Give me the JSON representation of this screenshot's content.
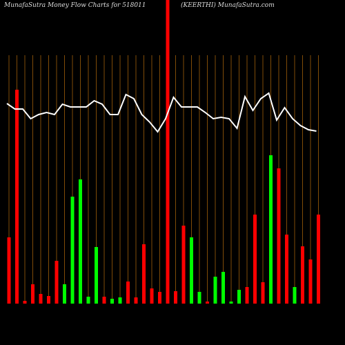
{
  "chart_data": {
    "type": "bar",
    "title": "MunafaSutra  Money Flow  Charts for 518011",
    "subtitle": "(KEERTHI) MunafaSutra.com",
    "ylim": [
      0,
      440
    ],
    "series": [
      {
        "type": "bar",
        "colors": [
          "#ff0000",
          "#ff0000",
          "#ff0000",
          "#ff0000",
          "#ff0000",
          "#ff0000",
          "#ff0000",
          "#00ff00",
          "#00ff00",
          "#00ff00",
          "#00ff00",
          "#00ff00",
          "#ff0000",
          "#00ff00",
          "#00ff00",
          "#ff0000",
          "#ff0000",
          "#ff0000",
          "#ff0000",
          "#ff0000",
          "#ff0000",
          "#ff0000",
          "#ff0000",
          "#00ff00",
          "#00ff00",
          "#ff0000",
          "#00ff00",
          "#00ff00",
          "#00ff00",
          "#00ff00",
          "#ff0000",
          "#ff0000",
          "#ff0000",
          "#00ff00",
          "#ff0000",
          "#ff0000",
          "#00ff00",
          "#ff0000",
          "#ff0000",
          "#ff0000"
        ],
        "values": [
          96,
          310,
          4,
          28,
          14,
          11,
          62,
          28,
          155,
          180,
          10,
          82,
          10,
          7,
          9,
          32,
          9,
          86,
          22,
          17,
          440,
          18,
          113,
          96,
          17,
          3,
          39,
          46,
          3,
          20,
          24,
          129,
          31,
          215,
          196,
          100,
          24,
          83,
          64,
          129
        ]
      },
      {
        "type": "line",
        "color": "#ffffff",
        "values": [
          290,
          282,
          282,
          268,
          274,
          277,
          274,
          289,
          285,
          285,
          285,
          294,
          289,
          274,
          274,
          303,
          297,
          274,
          263,
          249,
          268,
          299,
          285,
          285,
          285,
          277,
          268,
          270,
          268,
          254,
          300,
          280,
          297,
          305,
          266,
          284,
          268,
          258,
          252,
          250
        ]
      }
    ]
  }
}
